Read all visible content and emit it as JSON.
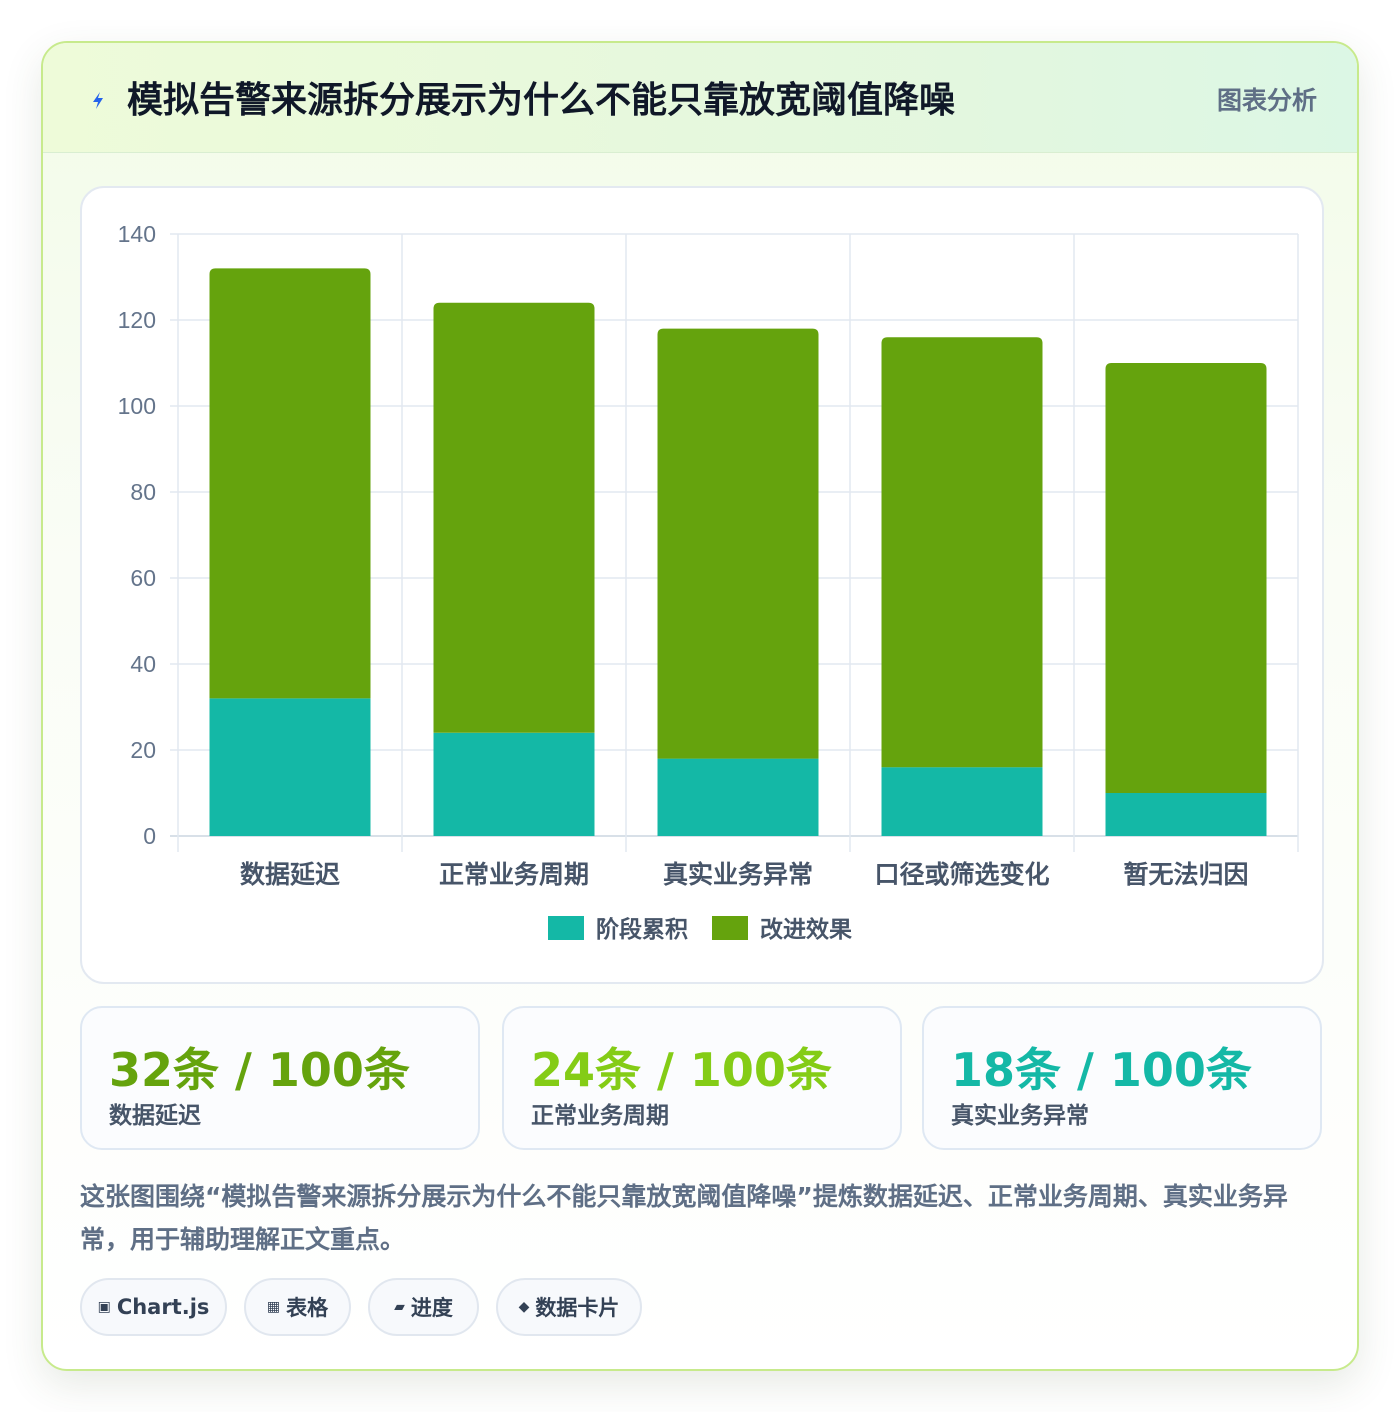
{
  "header": {
    "title": "模拟告警来源拆分展示为什么不能只靠放宽阈值降噪",
    "tag": "图表分析",
    "icon": "lightning-icon"
  },
  "chart_data": {
    "type": "bar",
    "stacked": true,
    "categories": [
      "数据延迟",
      "正常业务周期",
      "真实业务异常",
      "口径或筛选变化",
      "暂无法归因"
    ],
    "series": [
      {
        "name": "阶段累积",
        "values": [
          32,
          24,
          18,
          16,
          10
        ],
        "color": "#14b8a6"
      },
      {
        "name": "改进效果",
        "values": [
          100,
          100,
          100,
          100,
          100
        ],
        "color": "#65a30d"
      }
    ],
    "ylim": [
      0,
      140
    ],
    "yticks": [
      0,
      20,
      40,
      60,
      80,
      100,
      120,
      140
    ],
    "grid": true,
    "legend_position": "bottom"
  },
  "stats": [
    {
      "value": "32条 / 100条",
      "label": "数据延迟",
      "color": "#65a30d"
    },
    {
      "value": "24条 / 100条",
      "label": "正常业务周期",
      "color": "#84cc16"
    },
    {
      "value": "18条 / 100条",
      "label": "真实业务异常",
      "color": "#14b8a6"
    }
  ],
  "summary": "这张图围绕“模拟告警来源拆分展示为什么不能只靠放宽阈值降噪”提炼数据延迟、正常业务周期、真实业务异常，用于辅助理解正文重点。",
  "chips": [
    {
      "icon": "▣",
      "label": "Chart.js"
    },
    {
      "icon": "▦",
      "label": "表格"
    },
    {
      "icon": "▰",
      "label": "进度"
    },
    {
      "icon": "◆",
      "label": "数据卡片"
    }
  ]
}
